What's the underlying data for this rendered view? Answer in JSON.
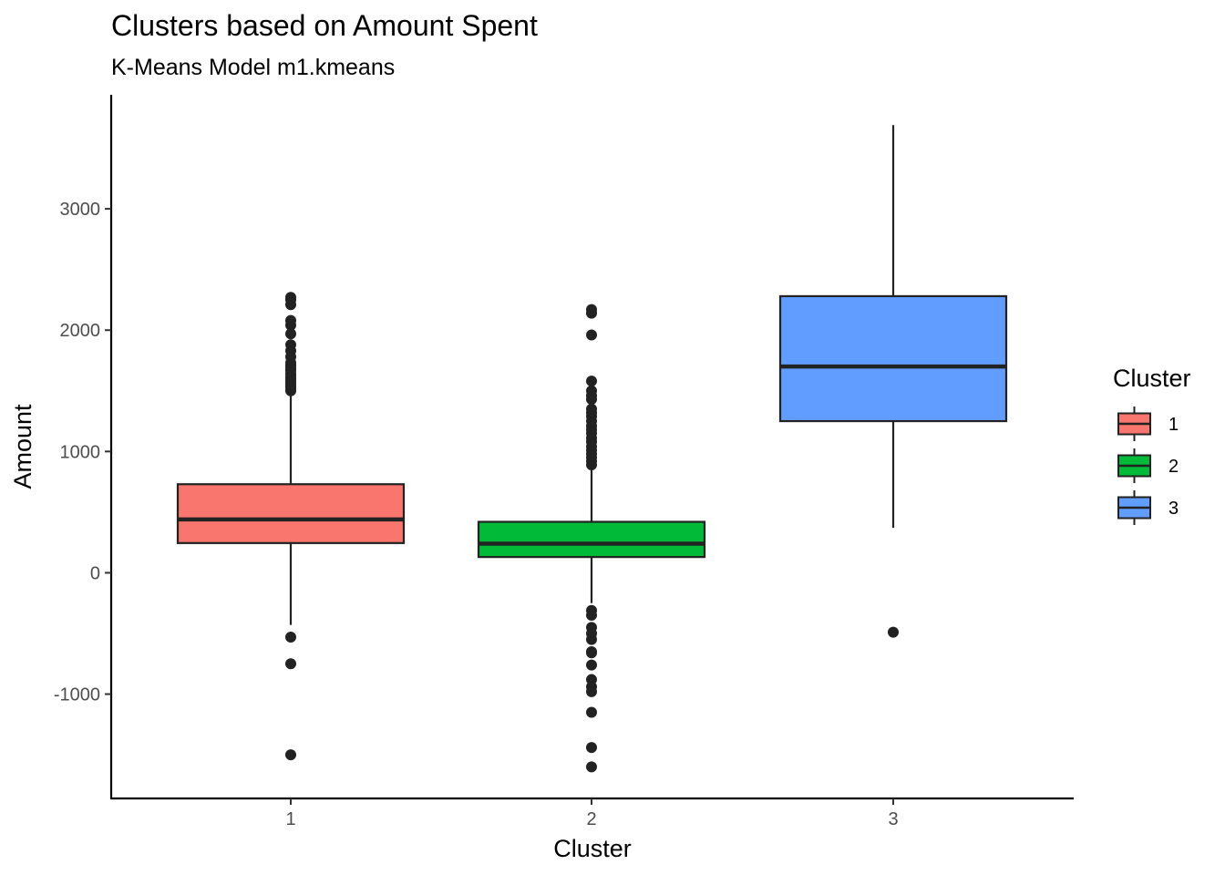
{
  "chart_data": {
    "type": "boxplot",
    "title": "Clusters based on Amount Spent",
    "subtitle": "K-Means Model m1.kmeans",
    "xlabel": "Cluster",
    "ylabel": "Amount",
    "ylim": [
      -1860,
      3940
    ],
    "y_ticks": [
      3000,
      2000,
      1000,
      0,
      -1000
    ],
    "y_tick_labels": [
      "3000",
      "2000",
      "1000",
      "0",
      "-1000"
    ],
    "grid": false,
    "legend": {
      "title": "Cluster",
      "position": "right"
    },
    "categories": [
      "1",
      "2",
      "3"
    ],
    "series": [
      {
        "name": "1",
        "color": "#F8766D",
        "whisker_low": -430,
        "q1": 245,
        "median": 440,
        "q3": 730,
        "whisker_high": 1460,
        "outliers": [
          2270,
          2250,
          2210,
          2080,
          2040,
          1970,
          1880,
          1830,
          1780,
          1730,
          1710,
          1690,
          1670,
          1640,
          1620,
          1600,
          1580,
          1560,
          1540,
          1520,
          1500,
          -530,
          -750,
          -1500
        ]
      },
      {
        "name": "2",
        "color": "#00BA38",
        "whisker_low": -250,
        "q1": 130,
        "median": 240,
        "q3": 420,
        "whisker_high": 870,
        "outliers": [
          2170,
          2140,
          1960,
          1580,
          1500,
          1460,
          1430,
          1350,
          1320,
          1290,
          1250,
          1210,
          1180,
          1150,
          1110,
          1080,
          1040,
          1010,
          980,
          950,
          920,
          890,
          -310,
          -350,
          -450,
          -500,
          -550,
          -650,
          -660,
          -760,
          -880,
          -940,
          -980,
          -1150,
          -1440,
          -1600
        ]
      },
      {
        "name": "3",
        "color": "#619CFF",
        "whisker_low": 370,
        "q1": 1250,
        "median": 1700,
        "q3": 2280,
        "whisker_high": 3690,
        "outliers": [
          -490
        ]
      }
    ]
  }
}
